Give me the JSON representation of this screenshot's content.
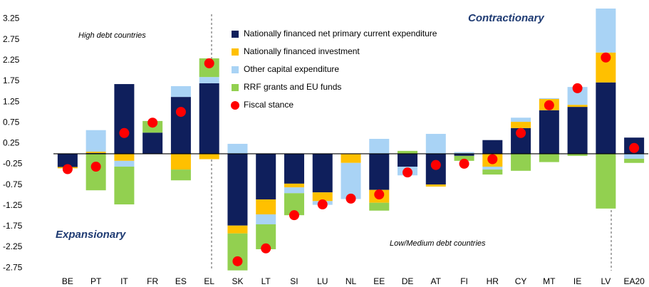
{
  "chart_data": {
    "type": "stacked_bar",
    "categories": [
      "BE",
      "PT",
      "IT",
      "FR",
      "ES",
      "EL",
      "SK",
      "LT",
      "SI",
      "LU",
      "NL",
      "EE",
      "DE",
      "AT",
      "FI",
      "HR",
      "CY",
      "MT",
      "IE",
      "LV",
      "EA20"
    ],
    "series": [
      {
        "name": "Nationally financed net primary current expenditure",
        "color": "#0f1f5c",
        "values": [
          -0.32,
          0.02,
          1.68,
          0.51,
          1.37,
          1.7,
          -1.73,
          -1.1,
          -0.72,
          -0.93,
          0,
          -0.87,
          -0.31,
          -0.74,
          -0.05,
          0.33,
          0.62,
          1.05,
          1.13,
          1.72,
          0.39
        ]
      },
      {
        "name": "Nationally financed investment",
        "color": "#ffc000",
        "values": [
          -0.03,
          0.03,
          -0.17,
          0,
          -0.38,
          -0.13,
          -0.19,
          -0.36,
          -0.09,
          -0.21,
          -0.22,
          -0.31,
          0,
          -0.05,
          0,
          -0.31,
          0.15,
          0.27,
          0.05,
          0.72,
          0
        ]
      },
      {
        "name": "Other capital expenditure",
        "color": "#a9d3f5",
        "values": [
          0,
          0.52,
          -0.14,
          0,
          0.26,
          0.15,
          0.24,
          -0.24,
          -0.14,
          -0.09,
          -0.87,
          0.36,
          -0.21,
          0.48,
          0.04,
          -0.07,
          0.1,
          0.02,
          0.43,
          1.06,
          -0.12
        ]
      },
      {
        "name": "RRF grants and EU funds",
        "color": "#92d050",
        "values": [
          0,
          -0.88,
          -0.91,
          0.28,
          -0.26,
          0.45,
          -0.89,
          -0.6,
          -0.53,
          0,
          0,
          -0.19,
          0.07,
          0,
          -0.12,
          -0.12,
          -0.41,
          -0.2,
          -0.05,
          -1.32,
          -0.1
        ]
      }
    ],
    "markers": {
      "name": "Fiscal stance",
      "color": "#ff0000",
      "values": [
        -0.37,
        -0.31,
        0.5,
        0.75,
        1.01,
        2.18,
        -2.59,
        -2.28,
        -1.48,
        -1.22,
        -1.08,
        -0.98,
        -0.45,
        -0.27,
        -0.24,
        -0.13,
        0.5,
        1.17,
        1.58,
        2.32,
        0.14
      ]
    },
    "annotations": [
      "High debt countries",
      "Contractionary",
      "Expansionary",
      "Low/Medium debt countries"
    ],
    "ylim": [
      -2.85,
      3.5
    ],
    "yticks": [
      3.25,
      2.75,
      2.25,
      1.75,
      1.25,
      0.75,
      0.25,
      -0.25,
      -0.75,
      -1.25,
      -1.75,
      -2.25,
      -2.75
    ]
  }
}
